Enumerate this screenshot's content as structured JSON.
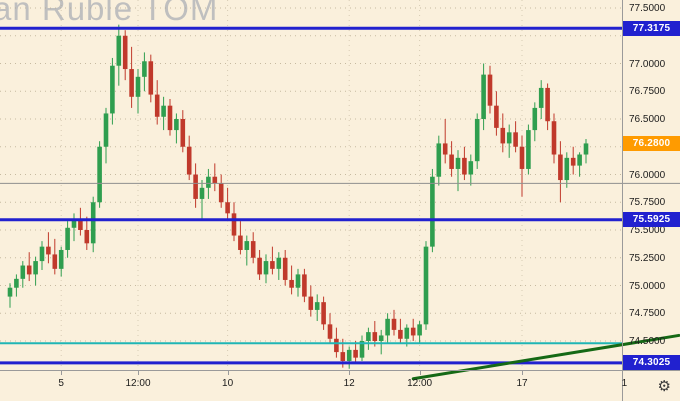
{
  "icons": {
    "gear": "⚙"
  },
  "chart": {
    "background": "#FAF0DC",
    "up_color": "#2f9e4f",
    "down_color": "#c0392b",
    "grid_color": "#b5a88c",
    "axis_text_color": "#1c1c1c",
    "badge_blue": "#2121cf",
    "badge_orange": "#ff9b00",
    "level_blue": "#2121cf",
    "teal_line": "#1fb5b5",
    "gray_line": "#8f8f8f",
    "trend_green": "#156915"
  },
  "chart_data": {
    "type": "candlestick",
    "title": "an Ruble TOM",
    "price_axis": {
      "min": 74.5,
      "max": 77.5,
      "step": 0.25,
      "ticks": [
        {
          "label": "77.5000",
          "value": 77.5
        },
        {
          "label": "77.0000",
          "value": 77.0
        },
        {
          "label": "76.7500",
          "value": 76.75
        },
        {
          "label": "76.5000",
          "value": 76.5
        },
        {
          "label": "76.0000",
          "value": 76.0
        },
        {
          "label": "75.7500",
          "value": 75.75
        },
        {
          "label": "75.5000",
          "value": 75.5
        },
        {
          "label": "75.2500",
          "value": 75.25
        },
        {
          "label": "75.0000",
          "value": 75.0
        },
        {
          "label": "74.7500",
          "value": 74.75
        },
        {
          "label": "74.5000",
          "value": 74.5
        }
      ]
    },
    "time_ticks": [
      {
        "label": "5",
        "index": 8
      },
      {
        "label": "12:00",
        "index": 20
      },
      {
        "label": "10",
        "index": 34
      },
      {
        "label": "12",
        "index": 53
      },
      {
        "label": "12:00",
        "index": 64
      },
      {
        "label": "17",
        "index": 80
      },
      {
        "label": "1",
        "index": 96
      }
    ],
    "levels": [
      {
        "label": "77.3175",
        "value": 77.3175,
        "color": "blue",
        "line_width": 3,
        "badge": true
      },
      {
        "label": "75.5925",
        "value": 75.5925,
        "color": "blue",
        "line_width": 3,
        "badge": true
      },
      {
        "label": "74.3025",
        "value": 74.3025,
        "color": "blue",
        "line_width": 3,
        "badge": true
      },
      {
        "value": 74.48,
        "color": "teal",
        "line_width": 2,
        "badge": false
      },
      {
        "value": 75.92,
        "color": "gray",
        "line_width": 1,
        "badge": false,
        "full_width": true
      }
    ],
    "last_price": {
      "label": "76.2800",
      "value": 76.28
    },
    "trendline": {
      "from_index": 63,
      "from_value": 74.16,
      "to_index": 104.5,
      "to_value": 74.55,
      "width": 3
    },
    "candles": [
      [
        74.9,
        75.02,
        74.8,
        74.98
      ],
      [
        74.98,
        75.1,
        74.9,
        75.06
      ],
      [
        75.06,
        75.22,
        74.98,
        75.18
      ],
      [
        75.18,
        75.3,
        75.04,
        75.1
      ],
      [
        75.1,
        75.26,
        75.0,
        75.22
      ],
      [
        75.22,
        75.4,
        75.14,
        75.35
      ],
      [
        75.35,
        75.48,
        75.2,
        75.28
      ],
      [
        75.28,
        75.42,
        75.1,
        75.15
      ],
      [
        75.15,
        75.35,
        75.08,
        75.32
      ],
      [
        75.32,
        75.58,
        75.25,
        75.52
      ],
      [
        75.52,
        75.65,
        75.4,
        75.6
      ],
      [
        75.6,
        75.7,
        75.45,
        75.5
      ],
      [
        75.5,
        75.62,
        75.32,
        75.38
      ],
      [
        75.38,
        75.8,
        75.3,
        75.75
      ],
      [
        75.75,
        76.3,
        75.7,
        76.25
      ],
      [
        76.25,
        76.6,
        76.1,
        76.55
      ],
      [
        76.55,
        77.05,
        76.45,
        76.98
      ],
      [
        76.98,
        77.35,
        76.8,
        77.25
      ],
      [
        77.25,
        77.3,
        76.85,
        76.95
      ],
      [
        76.95,
        77.15,
        76.6,
        76.7
      ],
      [
        76.7,
        76.95,
        76.55,
        76.88
      ],
      [
        76.88,
        77.1,
        76.75,
        77.02
      ],
      [
        77.02,
        77.08,
        76.65,
        76.72
      ],
      [
        76.72,
        76.85,
        76.45,
        76.52
      ],
      [
        76.52,
        76.7,
        76.4,
        76.62
      ],
      [
        76.62,
        76.68,
        76.35,
        76.4
      ],
      [
        76.4,
        76.55,
        76.28,
        76.5
      ],
      [
        76.5,
        76.58,
        76.2,
        76.25
      ],
      [
        76.25,
        76.35,
        75.95,
        76.0
      ],
      [
        76.0,
        76.1,
        75.7,
        75.78
      ],
      [
        75.78,
        75.95,
        75.6,
        75.88
      ],
      [
        75.88,
        76.05,
        75.78,
        75.98
      ],
      [
        75.98,
        76.1,
        75.85,
        75.92
      ],
      [
        75.92,
        76.0,
        75.7,
        75.75
      ],
      [
        75.75,
        75.88,
        75.58,
        75.65
      ],
      [
        75.65,
        75.75,
        75.4,
        75.45
      ],
      [
        75.45,
        75.58,
        75.28,
        75.32
      ],
      [
        75.32,
        75.45,
        75.18,
        75.4
      ],
      [
        75.4,
        75.48,
        75.2,
        75.25
      ],
      [
        75.25,
        75.32,
        75.05,
        75.1
      ],
      [
        75.1,
        75.28,
        75.02,
        75.22
      ],
      [
        75.22,
        75.35,
        75.1,
        75.15
      ],
      [
        75.15,
        75.3,
        75.05,
        75.25
      ],
      [
        75.25,
        75.32,
        75.0,
        75.05
      ],
      [
        75.05,
        75.18,
        74.92,
        74.98
      ],
      [
        74.98,
        75.15,
        74.9,
        75.1
      ],
      [
        75.1,
        75.15,
        74.85,
        74.9
      ],
      [
        74.9,
        75.0,
        74.72,
        74.78
      ],
      [
        74.78,
        74.92,
        74.68,
        74.85
      ],
      [
        74.85,
        74.9,
        74.6,
        74.65
      ],
      [
        74.65,
        74.75,
        74.48,
        74.52
      ],
      [
        74.52,
        74.62,
        74.35,
        74.4
      ],
      [
        74.4,
        74.52,
        74.26,
        74.32
      ],
      [
        74.32,
        74.45,
        74.25,
        74.42
      ],
      [
        74.42,
        74.5,
        74.3,
        74.35
      ],
      [
        74.35,
        74.55,
        74.32,
        74.5
      ],
      [
        74.5,
        74.62,
        74.42,
        74.58
      ],
      [
        74.58,
        74.68,
        74.45,
        74.5
      ],
      [
        74.5,
        74.6,
        74.38,
        74.55
      ],
      [
        74.55,
        74.75,
        74.48,
        74.7
      ],
      [
        74.7,
        74.78,
        74.55,
        74.6
      ],
      [
        74.6,
        74.7,
        74.48,
        74.52
      ],
      [
        74.52,
        74.65,
        74.45,
        74.62
      ],
      [
        74.62,
        74.7,
        74.5,
        74.55
      ],
      [
        74.55,
        74.68,
        74.48,
        74.65
      ],
      [
        74.65,
        75.4,
        74.6,
        75.35
      ],
      [
        75.35,
        76.05,
        75.3,
        75.98
      ],
      [
        75.98,
        76.35,
        75.9,
        76.28
      ],
      [
        76.28,
        76.5,
        76.1,
        76.18
      ],
      [
        76.18,
        76.3,
        75.98,
        76.05
      ],
      [
        76.05,
        76.22,
        75.85,
        76.15
      ],
      [
        76.15,
        76.25,
        75.95,
        76.0
      ],
      [
        76.0,
        76.18,
        75.9,
        76.12
      ],
      [
        76.12,
        76.55,
        76.05,
        76.5
      ],
      [
        76.5,
        77.0,
        76.4,
        76.9
      ],
      [
        76.9,
        76.98,
        76.55,
        76.62
      ],
      [
        76.62,
        76.75,
        76.35,
        76.42
      ],
      [
        76.42,
        76.55,
        76.2,
        76.28
      ],
      [
        76.28,
        76.45,
        76.15,
        76.38
      ],
      [
        76.38,
        76.48,
        76.2,
        76.25
      ],
      [
        76.25,
        76.35,
        75.8,
        76.05
      ],
      [
        76.05,
        76.45,
        76.0,
        76.4
      ],
      [
        76.4,
        76.65,
        76.3,
        76.6
      ],
      [
        76.6,
        76.85,
        76.5,
        76.78
      ],
      [
        76.78,
        76.82,
        76.4,
        76.48
      ],
      [
        76.48,
        76.55,
        76.1,
        76.18
      ],
      [
        76.18,
        76.3,
        75.75,
        75.95
      ],
      [
        75.95,
        76.2,
        75.88,
        76.15
      ],
      [
        76.15,
        76.25,
        76.0,
        76.08
      ],
      [
        76.08,
        76.2,
        75.98,
        76.18
      ],
      [
        76.18,
        76.32,
        76.1,
        76.28
      ]
    ]
  }
}
